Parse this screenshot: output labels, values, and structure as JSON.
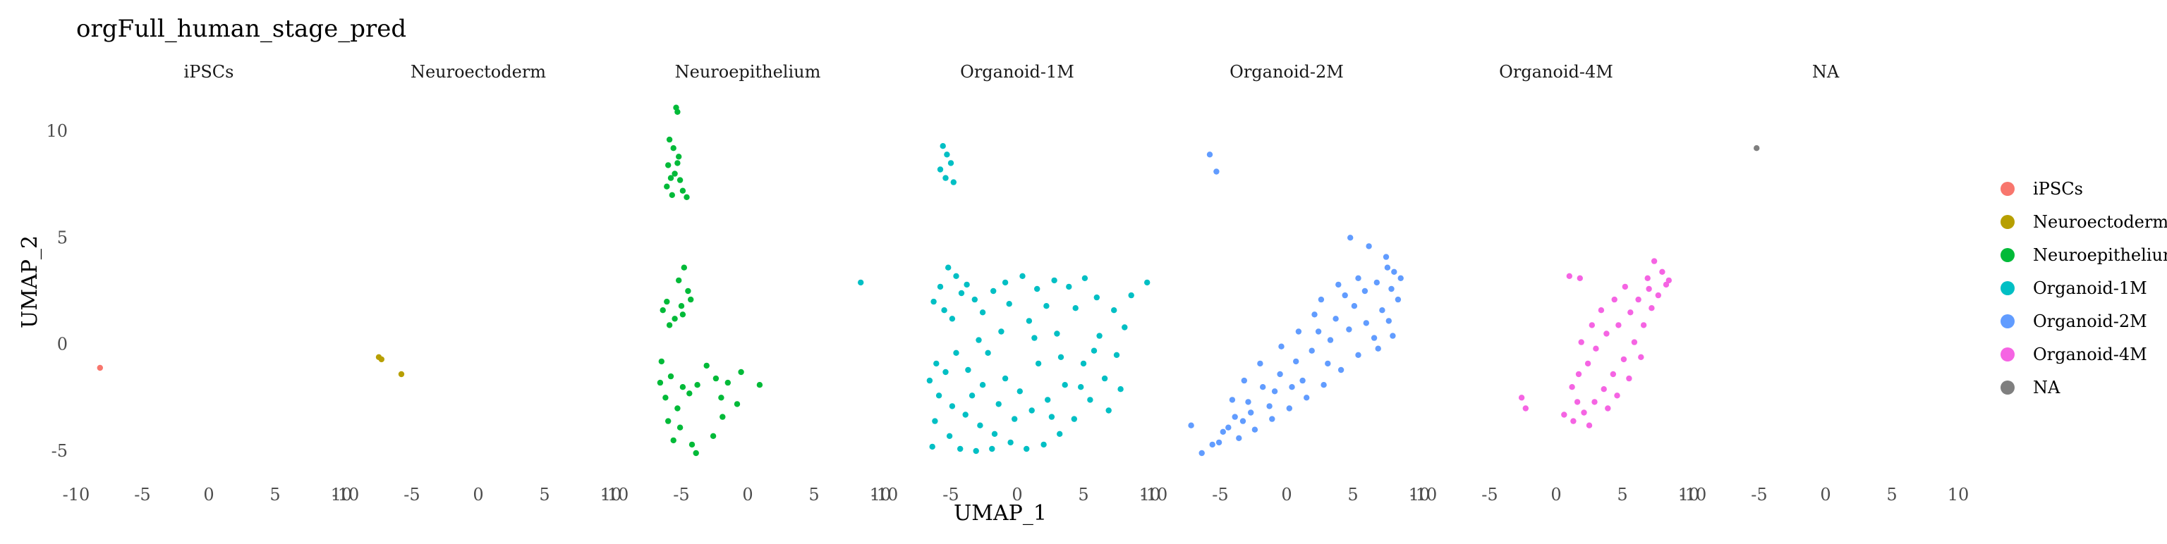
{
  "chart_data": {
    "type": "scatter",
    "title": "orgFull_human_stage_pred",
    "xlabel": "UMAP_1",
    "ylabel": "UMAP_2",
    "xlim": [
      -10,
      10
    ],
    "ylim": [
      -6,
      11.5
    ],
    "x_ticks": [
      -10,
      -5,
      0,
      5,
      10
    ],
    "x_tick_labels": [
      "-10",
      "-5",
      "0",
      "5",
      "10"
    ],
    "y_ticks": [
      -5,
      0,
      5,
      10
    ],
    "y_tick_labels": [
      "-5",
      "0",
      "5",
      "10"
    ],
    "grid": false,
    "legend_position": "right",
    "facets": [
      "iPSCs",
      "Neuroectoderm",
      "Neuroepithelium",
      "Organoid-1M",
      "Organoid-2M",
      "Organoid-4M",
      "NA"
    ],
    "legend": [
      {
        "label": "iPSCs",
        "color": "#F8766D"
      },
      {
        "label": "Neuroectoderm",
        "color": "#B79F00"
      },
      {
        "label": "Neuroepithelium",
        "color": "#00BA38"
      },
      {
        "label": "Organoid-1M",
        "color": "#00BFC4"
      },
      {
        "label": "Organoid-2M",
        "color": "#619CFF"
      },
      {
        "label": "Organoid-4M",
        "color": "#F564E3"
      },
      {
        "label": "NA",
        "color": "#7F7F7F"
      }
    ],
    "series": [
      {
        "name": "iPSCs",
        "facet": 0,
        "color": "#F8766D",
        "points": [
          [
            -8.2,
            -1.1
          ]
        ]
      },
      {
        "name": "Neuroectoderm",
        "facet": 1,
        "color": "#B79F00",
        "points": [
          [
            -7.5,
            -0.6
          ],
          [
            -7.3,
            -0.7
          ],
          [
            -5.8,
            -1.4
          ]
        ]
      },
      {
        "name": "Neuroepithelium",
        "facet": 2,
        "color": "#00BA38",
        "points": [
          [
            -5.4,
            11.1
          ],
          [
            -5.3,
            10.9
          ],
          [
            -5.9,
            9.6
          ],
          [
            -5.6,
            9.2
          ],
          [
            -5.2,
            8.8
          ],
          [
            -6.0,
            8.4
          ],
          [
            -5.5,
            8.0
          ],
          [
            -5.1,
            7.7
          ],
          [
            -6.1,
            7.4
          ],
          [
            -4.9,
            7.2
          ],
          [
            -5.7,
            7.0
          ],
          [
            -4.6,
            6.9
          ],
          [
            -5.3,
            8.5
          ],
          [
            -5.8,
            7.8
          ],
          [
            -4.8,
            3.6
          ],
          [
            -5.2,
            3.0
          ],
          [
            -4.5,
            2.5
          ],
          [
            -6.1,
            2.0
          ],
          [
            -5.0,
            1.8
          ],
          [
            -6.4,
            1.6
          ],
          [
            -5.5,
            1.2
          ],
          [
            -4.3,
            2.1
          ],
          [
            -5.9,
            0.9
          ],
          [
            -4.9,
            1.4
          ],
          [
            -6.5,
            -0.8
          ],
          [
            -5.8,
            -1.5
          ],
          [
            -4.9,
            -2.0
          ],
          [
            -6.2,
            -2.5
          ],
          [
            -5.3,
            -3.0
          ],
          [
            -4.4,
            -2.3
          ],
          [
            -6.0,
            -3.6
          ],
          [
            -5.1,
            -3.9
          ],
          [
            -3.8,
            -1.9
          ],
          [
            -2.4,
            -1.6
          ],
          [
            -1.5,
            -1.8
          ],
          [
            -0.8,
            -2.8
          ],
          [
            0.9,
            -1.9
          ],
          [
            -2.6,
            -4.3
          ],
          [
            -3.9,
            -5.1
          ],
          [
            -1.9,
            -3.4
          ],
          [
            -6.6,
            -1.8
          ],
          [
            -5.6,
            -4.5
          ],
          [
            -4.2,
            -4.7
          ],
          [
            -2.0,
            -2.5
          ],
          [
            -0.5,
            -1.3
          ],
          [
            -3.1,
            -1.0
          ]
        ]
      },
      {
        "name": "Organoid-1M",
        "facet": 3,
        "color": "#00BFC4",
        "points": [
          [
            -5.6,
            9.3
          ],
          [
            -5.3,
            8.9
          ],
          [
            -5.0,
            8.5
          ],
          [
            -5.8,
            8.2
          ],
          [
            -5.4,
            7.8
          ],
          [
            -4.8,
            7.6
          ],
          [
            -11.8,
            2.9
          ],
          [
            -5.2,
            3.6
          ],
          [
            -4.6,
            3.2
          ],
          [
            -5.8,
            2.7
          ],
          [
            -4.2,
            2.4
          ],
          [
            -6.3,
            2.0
          ],
          [
            -5.5,
            1.6
          ],
          [
            -4.9,
            1.2
          ],
          [
            -3.8,
            2.8
          ],
          [
            -3.2,
            2.1
          ],
          [
            -2.6,
            1.5
          ],
          [
            -1.8,
            2.5
          ],
          [
            -0.9,
            2.9
          ],
          [
            0.4,
            3.2
          ],
          [
            1.5,
            2.6
          ],
          [
            2.8,
            3.0
          ],
          [
            3.9,
            2.7
          ],
          [
            5.1,
            3.1
          ],
          [
            2.2,
            1.8
          ],
          [
            0.9,
            1.1
          ],
          [
            -1.2,
            0.6
          ],
          [
            -2.9,
            0.2
          ],
          [
            -4.6,
            -0.4
          ],
          [
            -6.1,
            -0.9
          ],
          [
            -6.6,
            -1.7
          ],
          [
            -5.9,
            -2.4
          ],
          [
            -4.9,
            -2.9
          ],
          [
            -3.9,
            -3.3
          ],
          [
            -2.8,
            -3.8
          ],
          [
            -1.7,
            -4.2
          ],
          [
            -0.5,
            -4.6
          ],
          [
            0.7,
            -4.9
          ],
          [
            2.0,
            -4.7
          ],
          [
            3.2,
            -4.2
          ],
          [
            4.3,
            -3.5
          ],
          [
            5.5,
            -2.6
          ],
          [
            6.6,
            -1.6
          ],
          [
            7.5,
            -0.5
          ],
          [
            8.1,
            0.8
          ],
          [
            8.6,
            2.3
          ],
          [
            9.8,
            2.9
          ],
          [
            7.3,
            1.6
          ],
          [
            6.2,
            0.4
          ],
          [
            5.0,
            -0.9
          ],
          [
            3.6,
            -1.9
          ],
          [
            2.3,
            -2.6
          ],
          [
            1.1,
            -3.1
          ],
          [
            -0.2,
            -3.5
          ],
          [
            -1.4,
            -2.8
          ],
          [
            -2.6,
            -1.9
          ],
          [
            -3.7,
            -1.2
          ],
          [
            -5.1,
            -4.3
          ],
          [
            -6.2,
            -3.6
          ],
          [
            -4.3,
            -4.9
          ],
          [
            -3.1,
            -5.0
          ],
          [
            -1.9,
            -4.9
          ],
          [
            0.2,
            -2.2
          ],
          [
            1.6,
            -0.9
          ],
          [
            3.0,
            0.5
          ],
          [
            4.4,
            1.7
          ],
          [
            6.0,
            2.2
          ],
          [
            7.8,
            -2.1
          ],
          [
            6.9,
            -3.1
          ],
          [
            -5.4,
            -1.3
          ],
          [
            -2.2,
            -0.4
          ],
          [
            -0.6,
            1.9
          ],
          [
            1.3,
            0.3
          ],
          [
            3.3,
            -0.6
          ],
          [
            4.8,
            -2.0
          ],
          [
            -6.4,
            -4.8
          ],
          [
            -3.4,
            -2.4
          ],
          [
            -0.9,
            -1.6
          ],
          [
            2.6,
            -3.4
          ],
          [
            5.8,
            -0.3
          ]
        ]
      },
      {
        "name": "Organoid-2M",
        "facet": 4,
        "color": "#619CFF",
        "points": [
          [
            -5.8,
            8.9
          ],
          [
            -5.3,
            8.1
          ],
          [
            4.8,
            5.0
          ],
          [
            6.2,
            4.6
          ],
          [
            7.5,
            4.1
          ],
          [
            8.1,
            3.4
          ],
          [
            7.9,
            2.6
          ],
          [
            6.8,
            2.9
          ],
          [
            5.4,
            3.1
          ],
          [
            3.9,
            2.8
          ],
          [
            2.6,
            2.1
          ],
          [
            7.2,
            1.6
          ],
          [
            6.0,
            1.0
          ],
          [
            4.7,
            0.7
          ],
          [
            3.3,
            0.2
          ],
          [
            1.9,
            -0.3
          ],
          [
            0.7,
            -0.8
          ],
          [
            -0.5,
            -1.4
          ],
          [
            -1.8,
            -2.0
          ],
          [
            -2.9,
            -2.7
          ],
          [
            -3.9,
            -3.4
          ],
          [
            -4.8,
            -4.1
          ],
          [
            -5.6,
            -4.7
          ],
          [
            -7.2,
            -3.8
          ],
          [
            -6.4,
            -5.1
          ],
          [
            -5.1,
            -4.6
          ],
          [
            -3.6,
            -4.4
          ],
          [
            -2.4,
            -4.0
          ],
          [
            -1.1,
            -3.5
          ],
          [
            0.2,
            -3.0
          ],
          [
            1.5,
            -2.5
          ],
          [
            2.8,
            -1.9
          ],
          [
            4.1,
            -1.2
          ],
          [
            5.4,
            -0.5
          ],
          [
            6.6,
            0.3
          ],
          [
            7.7,
            1.1
          ],
          [
            8.4,
            2.1
          ],
          [
            8.6,
            3.1
          ],
          [
            2.1,
            1.4
          ],
          [
            0.9,
            0.6
          ],
          [
            -0.4,
            -0.1
          ],
          [
            -2.0,
            -0.9
          ],
          [
            -3.2,
            -1.7
          ],
          [
            -4.1,
            -2.6
          ],
          [
            4.4,
            2.3
          ],
          [
            5.9,
            2.5
          ],
          [
            3.1,
            -0.9
          ],
          [
            1.2,
            -1.7
          ],
          [
            -1.3,
            -2.9
          ],
          [
            -3.3,
            -3.6
          ],
          [
            6.9,
            -0.2
          ],
          [
            7.6,
            3.6
          ],
          [
            5.1,
            1.8
          ],
          [
            2.4,
            0.6
          ],
          [
            -0.9,
            -2.2
          ],
          [
            -2.7,
            -3.2
          ],
          [
            8.0,
            0.4
          ],
          [
            3.7,
            1.2
          ],
          [
            0.4,
            -2.0
          ],
          [
            -4.4,
            -3.9
          ]
        ]
      },
      {
        "name": "Organoid-4M",
        "facet": 5,
        "color": "#F564E3",
        "points": [
          [
            1.0,
            3.2
          ],
          [
            1.8,
            3.1
          ],
          [
            7.4,
            3.9
          ],
          [
            8.0,
            3.4
          ],
          [
            8.3,
            2.8
          ],
          [
            7.0,
            2.6
          ],
          [
            6.2,
            2.1
          ],
          [
            5.6,
            1.5
          ],
          [
            4.7,
            0.9
          ],
          [
            3.8,
            0.5
          ],
          [
            3.0,
            -0.2
          ],
          [
            2.4,
            -0.9
          ],
          [
            1.7,
            -1.4
          ],
          [
            1.2,
            -2.0
          ],
          [
            -2.6,
            -2.5
          ],
          [
            -2.3,
            -3.0
          ],
          [
            0.6,
            -3.3
          ],
          [
            1.3,
            -3.6
          ],
          [
            2.1,
            -3.2
          ],
          [
            2.9,
            -2.7
          ],
          [
            3.6,
            -2.1
          ],
          [
            4.3,
            -1.4
          ],
          [
            5.1,
            -0.7
          ],
          [
            5.9,
            0.1
          ],
          [
            6.6,
            0.9
          ],
          [
            7.2,
            1.7
          ],
          [
            7.7,
            2.3
          ],
          [
            3.4,
            1.6
          ],
          [
            4.4,
            2.1
          ],
          [
            5.2,
            2.7
          ],
          [
            2.7,
            0.9
          ],
          [
            1.9,
            0.1
          ],
          [
            6.4,
            -0.6
          ],
          [
            5.5,
            -1.6
          ],
          [
            4.6,
            -2.4
          ],
          [
            3.9,
            -3.0
          ],
          [
            2.5,
            -3.8
          ],
          [
            1.6,
            -2.7
          ],
          [
            6.9,
            3.1
          ],
          [
            8.5,
            3.0
          ]
        ]
      },
      {
        "name": "NA",
        "facet": 6,
        "color": "#7F7F7F",
        "points": [
          [
            -5.2,
            9.2
          ]
        ]
      }
    ]
  }
}
